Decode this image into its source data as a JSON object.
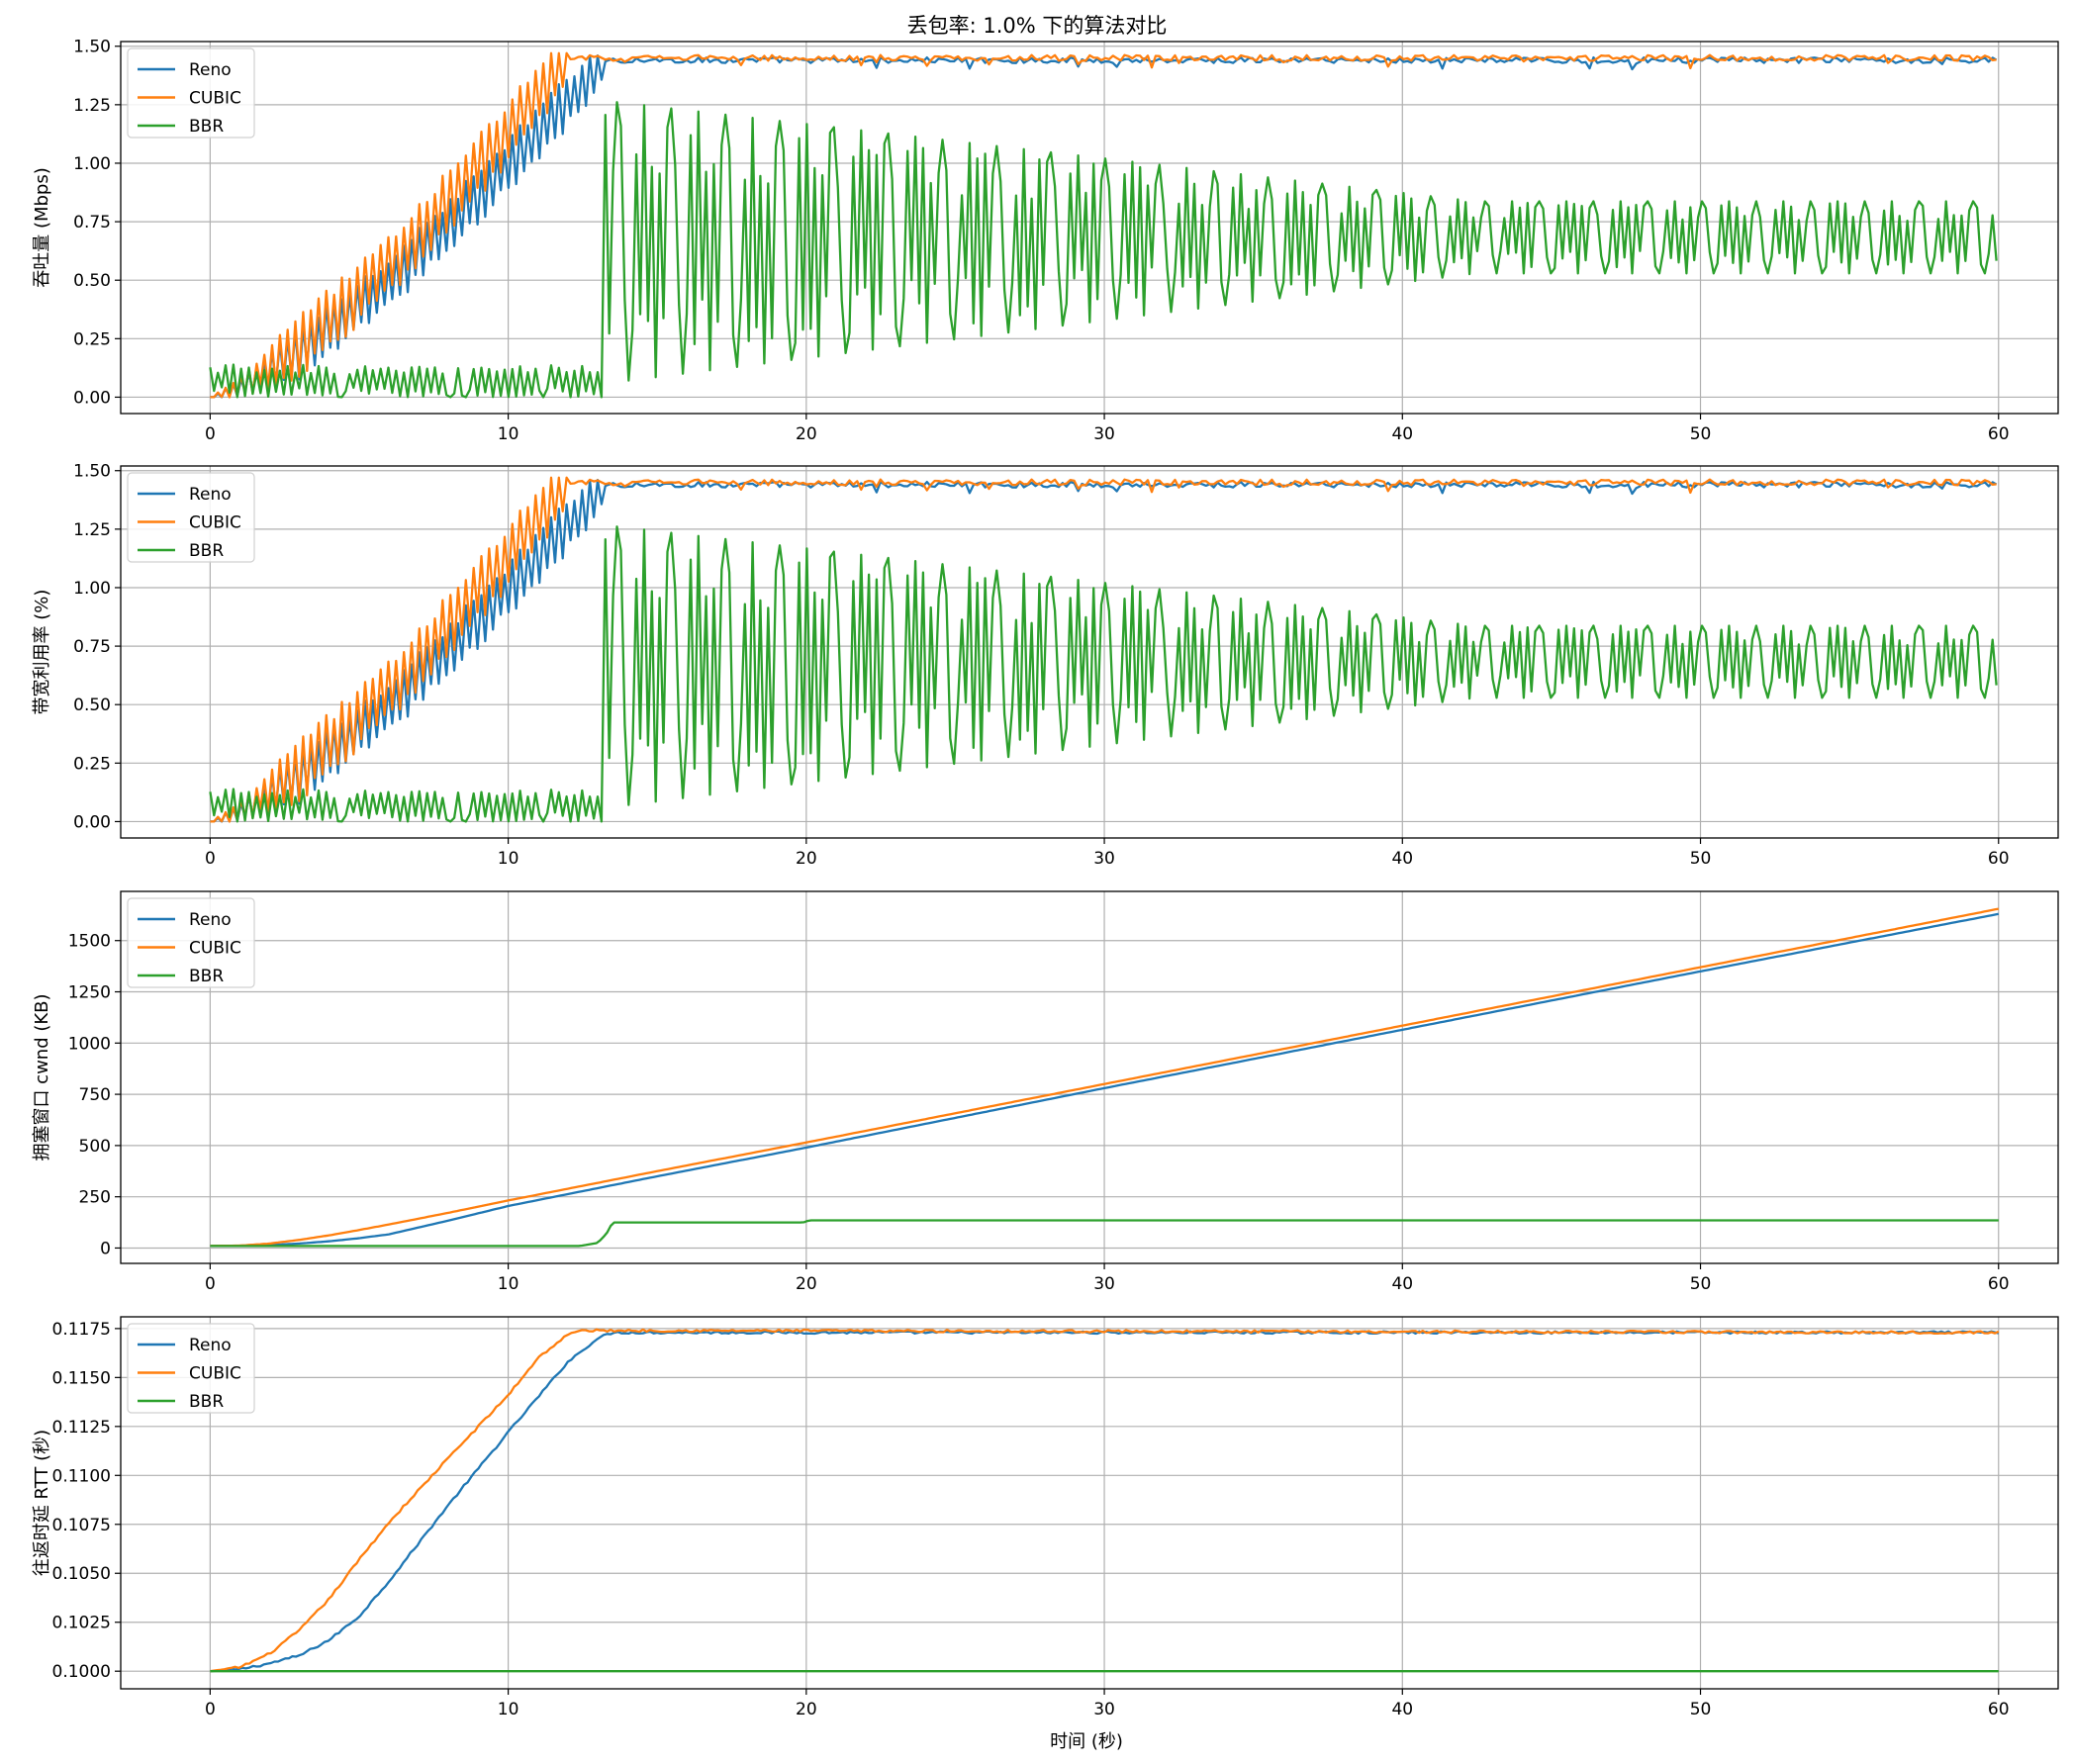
{
  "figure": {
    "title": "丢包率: 1.0% 下的算法对比",
    "xlabel": "时间 (秒)"
  },
  "colors": {
    "Reno": "#1f77b4",
    "CUBIC": "#ff7f0e",
    "BBR": "#2ca02c",
    "grid": "#b0b0b0"
  },
  "chart_data": [
    {
      "type": "line",
      "ylabel": "吞吐量 (Mbps)",
      "xlim": [
        -3,
        62
      ],
      "ylim": [
        -0.07,
        1.52
      ],
      "xticks": [
        0,
        10,
        20,
        30,
        40,
        50,
        60
      ],
      "yticks": [
        "0.00",
        "0.25",
        "0.50",
        "0.75",
        "1.00",
        "1.25",
        "1.50"
      ],
      "grid": true,
      "legend": "upper-left",
      "legend_entries": [
        "Reno",
        "CUBIC",
        "BBR"
      ],
      "series": [
        {
          "name": "Reno",
          "shape": "ramp",
          "base": 0.0,
          "plateau": 1.44,
          "ramp_end": 13.2,
          "osc": 0.12,
          "plateau_noise": 0.012
        },
        {
          "name": "CUBIC",
          "shape": "ramp",
          "base": 0.0,
          "plateau": 1.45,
          "ramp_end": 12.0,
          "osc": 0.14,
          "plateau_noise": 0.012
        },
        {
          "name": "BBR",
          "shape": "bbr",
          "startup_level": 0.07,
          "startup_amp": 0.07,
          "startup_end": 13.2,
          "mean": 0.69,
          "amp_start": 0.55,
          "amp_end": 0.14
        }
      ]
    },
    {
      "type": "line",
      "ylabel": "带宽利用率 (%)",
      "xlim": [
        -3,
        62
      ],
      "ylim": [
        -0.07,
        1.52
      ],
      "xticks": [
        0,
        10,
        20,
        30,
        40,
        50,
        60
      ],
      "yticks": [
        "0.00",
        "0.25",
        "0.50",
        "0.75",
        "1.00",
        "1.25",
        "1.50"
      ],
      "grid": true,
      "legend": "upper-left",
      "legend_entries": [
        "Reno",
        "CUBIC",
        "BBR"
      ],
      "series": [
        {
          "name": "Reno",
          "shape": "ramp",
          "base": 0.0,
          "plateau": 1.44,
          "ramp_end": 13.2,
          "osc": 0.12,
          "plateau_noise": 0.012
        },
        {
          "name": "CUBIC",
          "shape": "ramp",
          "base": 0.0,
          "plateau": 1.45,
          "ramp_end": 12.0,
          "osc": 0.14,
          "plateau_noise": 0.012
        },
        {
          "name": "BBR",
          "shape": "bbr",
          "startup_level": 0.07,
          "startup_amp": 0.07,
          "startup_end": 13.2,
          "mean": 0.69,
          "amp_start": 0.55,
          "amp_end": 0.14
        }
      ]
    },
    {
      "type": "line",
      "ylabel": "拥塞窗口 cwnd (KB)",
      "xlim": [
        -3,
        62
      ],
      "ylim": [
        -75,
        1740
      ],
      "xticks": [
        0,
        10,
        20,
        30,
        40,
        50,
        60
      ],
      "yticks": [
        "0",
        "250",
        "500",
        "750",
        "1000",
        "1250",
        "1500"
      ],
      "grid": true,
      "legend": "upper-left",
      "legend_entries": [
        "Reno",
        "CUBIC",
        "BBR"
      ],
      "series": [
        {
          "name": "Reno",
          "shape": "points",
          "x": [
            0,
            1,
            2,
            3,
            4,
            5,
            6,
            8,
            10,
            15,
            20,
            30,
            40,
            50,
            60
          ],
          "y": [
            10,
            11,
            15,
            22,
            33,
            48,
            67,
            134,
            205,
            350,
            490,
            780,
            1065,
            1350,
            1630
          ]
        },
        {
          "name": "CUBIC",
          "shape": "points",
          "x": [
            0,
            1,
            2,
            3,
            4,
            5,
            6,
            8,
            10,
            15,
            20,
            30,
            40,
            50,
            60
          ],
          "y": [
            10,
            12,
            22,
            40,
            62,
            88,
            115,
            172,
            232,
            375,
            515,
            800,
            1085,
            1370,
            1655
          ]
        },
        {
          "name": "BBR",
          "shape": "points",
          "x": [
            0,
            12.4,
            13.0,
            13.3,
            13.5,
            19.9,
            20.1,
            60
          ],
          "y": [
            10,
            10,
            25,
            70,
            125,
            125,
            135,
            135
          ]
        }
      ]
    },
    {
      "type": "line",
      "ylabel": "往返时延 RTT (秒)",
      "xlim": [
        -3,
        62
      ],
      "ylim": [
        0.0991,
        0.1181
      ],
      "xticks": [
        0,
        10,
        20,
        30,
        40,
        50,
        60
      ],
      "yticks": [
        "0.1000",
        "0.1025",
        "0.1050",
        "0.1075",
        "0.1100",
        "0.1125",
        "0.1150",
        "0.1175"
      ],
      "grid": true,
      "legend": "upper-left",
      "legend_entries": [
        "Reno",
        "CUBIC",
        "BBR"
      ],
      "series": [
        {
          "name": "Reno",
          "shape": "points",
          "x": [
            0,
            1,
            2,
            3,
            4,
            5,
            6,
            8,
            10,
            12,
            13,
            13.5,
            60
          ],
          "y": [
            0.1,
            0.1001,
            0.1004,
            0.1008,
            0.1016,
            0.1028,
            0.1046,
            0.1085,
            0.1122,
            0.1158,
            0.117,
            0.1173,
            0.1173
          ]
        },
        {
          "name": "CUBIC",
          "shape": "points",
          "x": [
            0,
            1,
            2,
            3,
            4,
            5,
            6,
            8,
            10,
            11,
            12,
            12.5,
            60
          ],
          "y": [
            0.1,
            0.1002,
            0.1009,
            0.1021,
            0.1037,
            0.1057,
            0.1076,
            0.1109,
            0.1141,
            0.116,
            0.1172,
            0.1174,
            0.1173
          ]
        },
        {
          "name": "BBR",
          "shape": "points",
          "x": [
            0,
            60
          ],
          "y": [
            0.1,
            0.1
          ]
        }
      ]
    }
  ]
}
